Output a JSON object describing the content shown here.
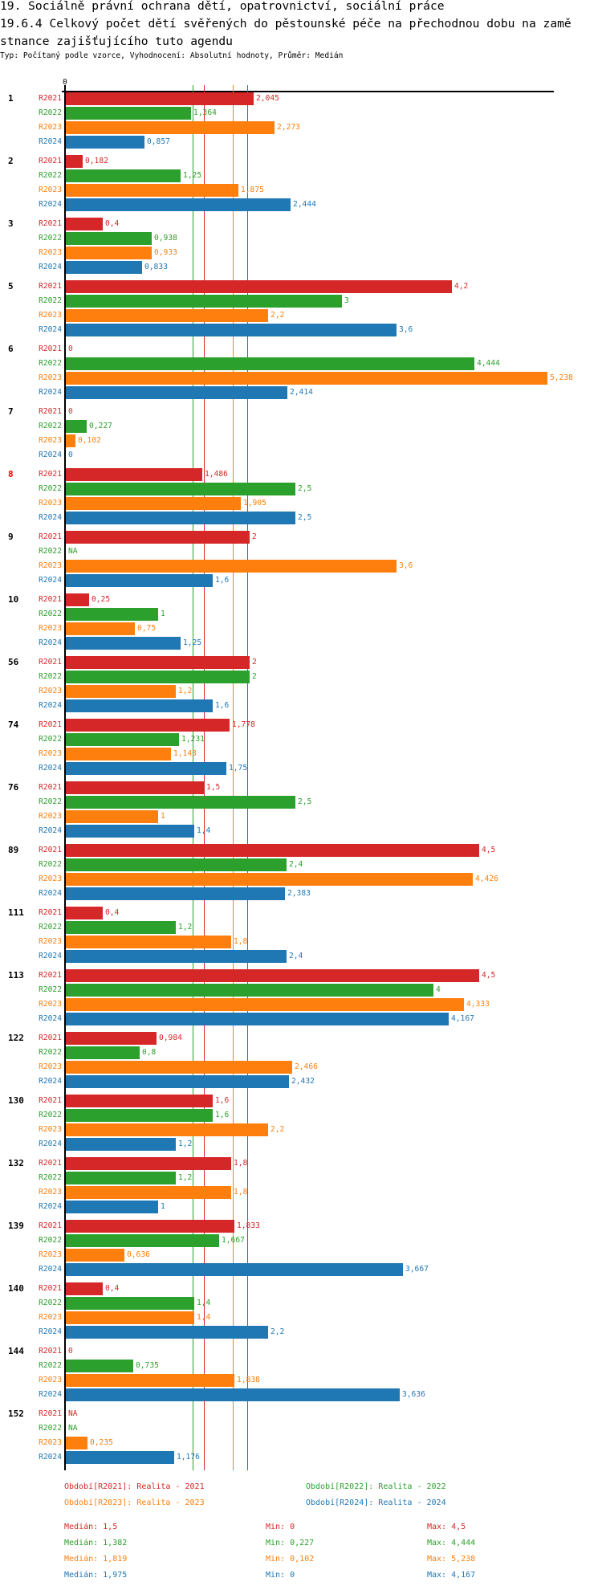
{
  "header": {
    "title_line1": "19. Sociálně právní ochrana dětí, opatrovnictví, sociální práce",
    "title_line2": "19.6.4 Celkový počet dětí svěřených do pěstounské péče na přechodnou dobu na zamě",
    "title_line3": "stnance zajišťujícího tuto agendu",
    "subtitle": "Typ: Počítaný podle vzorce, Vyhodnocení: Absolutní hodnoty, Průměr: Medián"
  },
  "chart_data": {
    "type": "bar",
    "orientation": "horizontal",
    "axis_zero_label": "0",
    "xlim": [
      0,
      5.3
    ],
    "series": [
      {
        "key": "R2021",
        "name": "Období[R2021]: Realita - 2021",
        "color": "#d62728",
        "median": 1.5,
        "median_label": "Medián: 1,5",
        "min_label": "Min: 0",
        "max_label": "Max: 4,5"
      },
      {
        "key": "R2022",
        "name": "Období[R2022]: Realita - 2022",
        "color": "#2ca02c",
        "median": 1.382,
        "median_label": "Medián: 1,382",
        "min_label": "Min: 0,227",
        "max_label": "Max: 4,444"
      },
      {
        "key": "R2023",
        "name": "Období[R2023]: Realita - 2023",
        "color": "#ff7f0e",
        "median": 1.819,
        "median_label": "Medián: 1,819",
        "min_label": "Min: 0,102",
        "max_label": "Max: 5,238"
      },
      {
        "key": "R2024",
        "name": "Období[R2024]: Realita - 2024",
        "color": "#1f77b4",
        "median": 1.975,
        "median_label": "Medián: 1,975",
        "min_label": "Min: 0",
        "max_label": "Max: 4,167"
      }
    ],
    "groups": [
      {
        "label": "1",
        "values": [
          2.045,
          1.364,
          2.273,
          0.857
        ]
      },
      {
        "label": "2",
        "values": [
          0.182,
          1.25,
          1.875,
          2.444
        ]
      },
      {
        "label": "3",
        "values": [
          0.4,
          0.938,
          0.933,
          0.833
        ]
      },
      {
        "label": "5",
        "values": [
          4.2,
          3,
          2.2,
          3.6
        ]
      },
      {
        "label": "6",
        "values": [
          0,
          4.444,
          5.238,
          2.414
        ]
      },
      {
        "label": "7",
        "values": [
          0,
          0.227,
          0.102,
          0
        ]
      },
      {
        "label": "8",
        "highlight": "#ff0000",
        "values": [
          1.486,
          2.5,
          1.905,
          2.5
        ]
      },
      {
        "label": "9",
        "values": [
          2,
          null,
          3.6,
          1.6
        ]
      },
      {
        "label": "10",
        "values": [
          0.25,
          1,
          0.75,
          1.25
        ]
      },
      {
        "label": "56",
        "values": [
          2,
          2,
          1.2,
          1.6
        ]
      },
      {
        "label": "74",
        "values": [
          1.778,
          1.231,
          1.143,
          1.75
        ]
      },
      {
        "label": "76",
        "values": [
          1.5,
          2.5,
          1,
          1.4
        ]
      },
      {
        "label": "89",
        "values": [
          4.5,
          2.4,
          4.426,
          2.383
        ]
      },
      {
        "label": "111",
        "values": [
          0.4,
          1.2,
          1.8,
          2.4
        ]
      },
      {
        "label": "113",
        "values": [
          4.5,
          4,
          4.333,
          4.167
        ]
      },
      {
        "label": "122",
        "values": [
          0.984,
          0.8,
          2.466,
          2.432
        ]
      },
      {
        "label": "130",
        "values": [
          1.6,
          1.6,
          2.2,
          1.2
        ]
      },
      {
        "label": "132",
        "values": [
          1.8,
          1.2,
          1.8,
          1
        ]
      },
      {
        "label": "139",
        "values": [
          1.833,
          1.667,
          0.636,
          3.667
        ]
      },
      {
        "label": "140",
        "values": [
          0.4,
          1.4,
          1.4,
          2.2
        ]
      },
      {
        "label": "144",
        "values": [
          0,
          0.735,
          1.838,
          3.636
        ]
      },
      {
        "label": "152",
        "values": [
          null,
          null,
          0.235,
          1.176
        ]
      }
    ],
    "na_label": "NA"
  }
}
